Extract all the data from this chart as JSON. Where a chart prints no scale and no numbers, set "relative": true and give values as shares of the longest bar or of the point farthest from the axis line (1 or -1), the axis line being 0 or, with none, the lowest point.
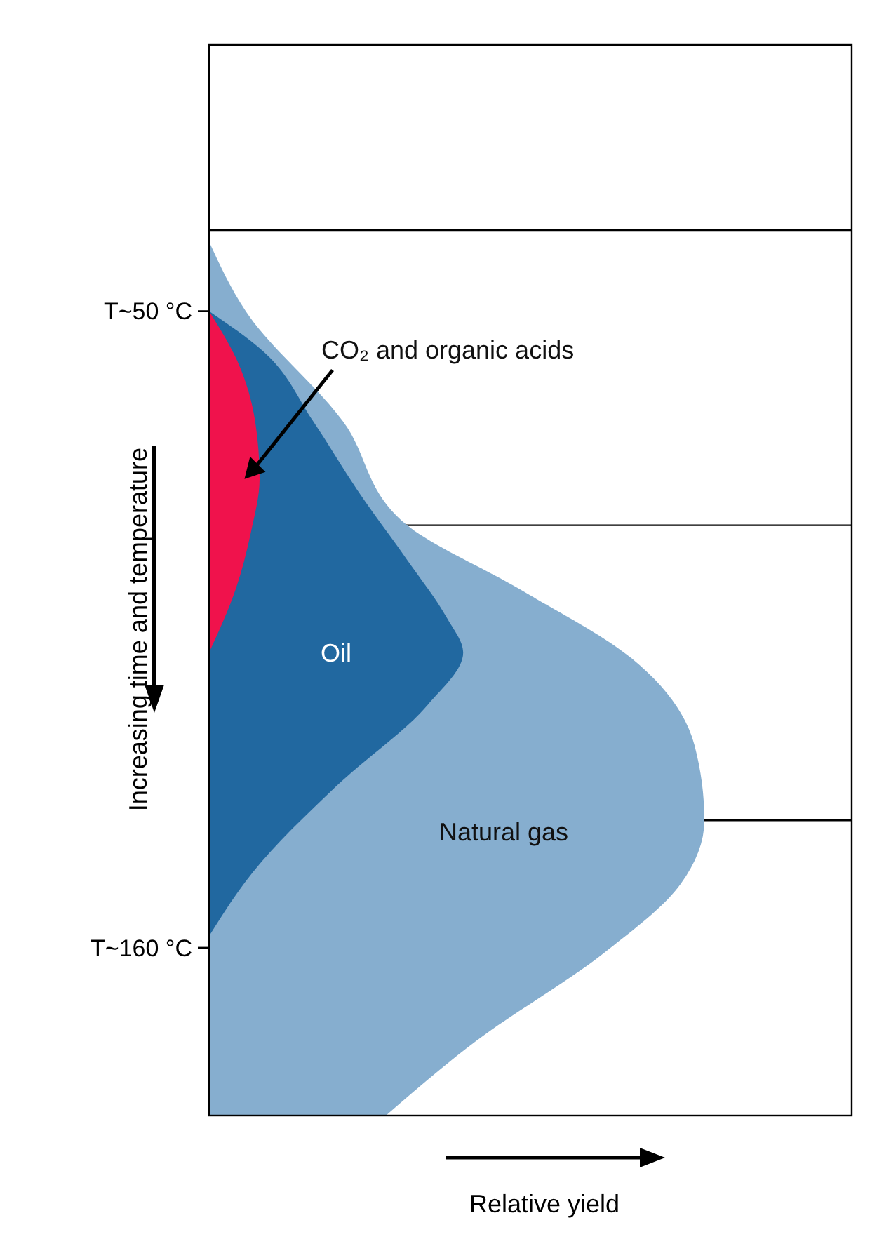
{
  "chart_data": {
    "type": "area",
    "orientation": "horizontal",
    "relative": true,
    "xlabel": "Relative yield",
    "ylabel": "Increasing time and temperature",
    "ylim": [
      189,
      4
    ],
    "yticks": [
      {
        "value": 50,
        "label": "T~50 °C"
      },
      {
        "value": 160,
        "label": "T~160 °C"
      }
    ],
    "ref_lines": [
      {
        "axis": "y",
        "value": 36,
        "color": "#000000"
      },
      {
        "axis": "y",
        "value": 87,
        "color": "#000000"
      },
      {
        "axis": "y",
        "value": 138,
        "color": "#000000"
      }
    ],
    "series": [
      {
        "name": "Natural gas",
        "color": "#86aecf",
        "x": [
          38,
          50,
          69,
          87,
          98,
          110,
          125,
          138,
          149,
          161,
          176,
          189
        ],
        "values": [
          0,
          0.074,
          0.27,
          0.4,
          0.626,
          0.853,
          0.98,
          1,
          0.952,
          0.796,
          0.541,
          0.357
        ]
      },
      {
        "name": "Oil",
        "color": "#2168a0",
        "x": [
          50,
          57,
          69,
          81,
          93,
          103,
          109,
          118,
          132,
          147,
          158
        ],
        "values": [
          0,
          0.11,
          0.21,
          0.3,
          0.4,
          0.48,
          0.513,
          0.442,
          0.258,
          0.088,
          0
        ]
      },
      {
        "name": "CO₂ and organic acids",
        "color": "#f0124c",
        "x": [
          50,
          59,
          69,
          79,
          88,
          98,
          109
        ],
        "values": [
          0,
          0.059,
          0.093,
          0.102,
          0.085,
          0.054,
          0
        ]
      }
    ]
  }
}
